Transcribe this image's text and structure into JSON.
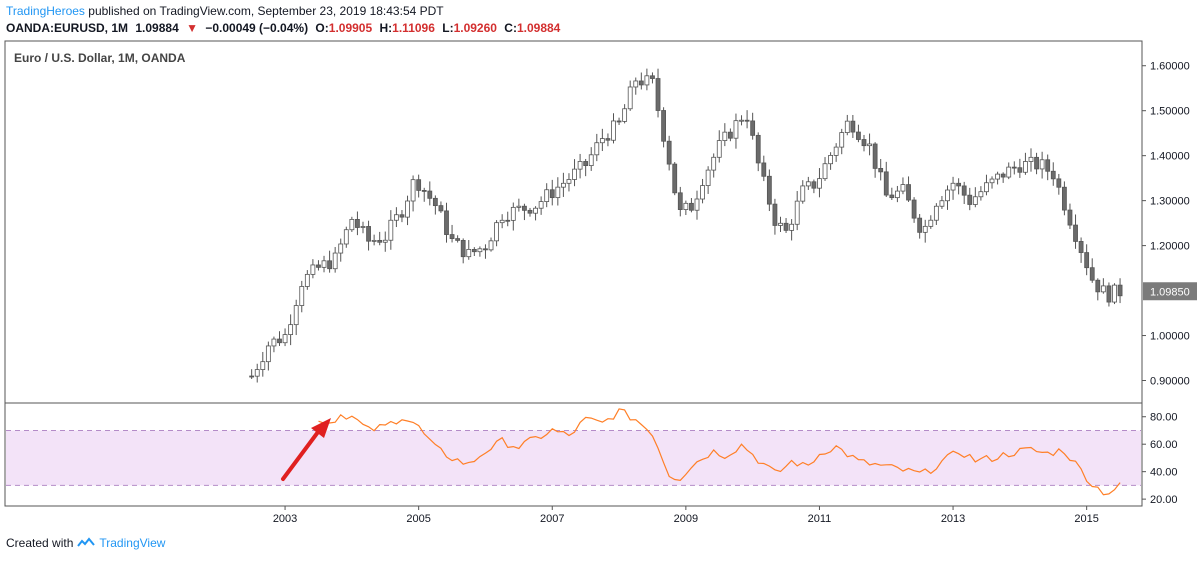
{
  "header": {
    "publisher": "TradingHeroes",
    "published_text": "published on TradingView.com, September 23, 2019 18:43:54 PDT"
  },
  "ticker": {
    "symbol": "OANDA:EURUSD, 1M",
    "last": "1.09884",
    "change": "−0.00049 (−0.04%)",
    "open_label": "O:",
    "open": "1.09905",
    "high_label": "H:",
    "high": "1.11096",
    "low_label": "L:",
    "low": "1.09260",
    "close_label": "C:",
    "close": "1.09884"
  },
  "colors": {
    "bull_fill": "#ffffff",
    "bear_fill": "#6b6b6b",
    "candle_border": "#555555",
    "rsi_line": "#ff7f27",
    "rsi_band": "#f3e3f8",
    "rsi_band_line": "#b48cc8",
    "arrow": "#e02020",
    "price_tag": "#7b7b7b"
  },
  "footer": {
    "created_with": "Created with",
    "brand": "TradingView"
  },
  "chart_data": [
    {
      "type": "candlestick",
      "title": "Euro / U.S. Dollar, 1M, OANDA",
      "ylim": [
        0.85,
        1.655
      ],
      "y_ticks": [
        "1.60000",
        "1.50000",
        "1.40000",
        "1.30000",
        "1.20000",
        "1.00000",
        "0.90000"
      ],
      "y_tick_values": [
        1.6,
        1.5,
        1.4,
        1.3,
        1.2,
        1.0,
        0.9
      ],
      "last_price_label": "1.09850",
      "last_price": 1.0985,
      "x_ticks": [
        "2003",
        "2005",
        "2007",
        "2009",
        "2011",
        "2013",
        "2015"
      ],
      "x_range": [
        2002.0,
        2015.55
      ],
      "close_series": {
        "x": [
          2002.5,
          2002.75,
          2003.0,
          2003.25,
          2003.5,
          2003.75,
          2004.0,
          2004.25,
          2004.5,
          2004.75,
          2004.95,
          2005.25,
          2005.5,
          2005.75,
          2006.0,
          2006.25,
          2006.5,
          2006.75,
          2007.0,
          2007.25,
          2007.5,
          2007.75,
          2008.0,
          2008.25,
          2008.5,
          2008.75,
          2008.9,
          2009.1,
          2009.25,
          2009.5,
          2009.75,
          2009.9,
          2010.1,
          2010.35,
          2010.5,
          2010.75,
          2010.95,
          2011.3,
          2011.45,
          2011.75,
          2012.0,
          2012.25,
          2012.55,
          2012.75,
          2013.0,
          2013.25,
          2013.5,
          2013.75,
          2014.0,
          2014.3,
          2014.5,
          2014.75,
          2015.0,
          2015.1,
          2015.3,
          2015.55
        ],
        "y": [
          0.91,
          0.98,
          1.0,
          1.12,
          1.15,
          1.17,
          1.26,
          1.21,
          1.22,
          1.28,
          1.35,
          1.29,
          1.21,
          1.18,
          1.2,
          1.27,
          1.28,
          1.29,
          1.32,
          1.35,
          1.38,
          1.44,
          1.47,
          1.57,
          1.56,
          1.39,
          1.27,
          1.29,
          1.35,
          1.42,
          1.47,
          1.5,
          1.37,
          1.25,
          1.23,
          1.32,
          1.34,
          1.44,
          1.48,
          1.42,
          1.31,
          1.32,
          1.23,
          1.3,
          1.34,
          1.3,
          1.33,
          1.36,
          1.38,
          1.38,
          1.36,
          1.26,
          1.16,
          1.12,
          1.09,
          1.1
        ]
      }
    },
    {
      "type": "line",
      "series_kind": "RSI",
      "ylim": [
        15,
        90
      ],
      "y_ticks": [
        "80.00",
        "60.00",
        "40.00",
        "20.00"
      ],
      "y_tick_values": [
        80,
        60,
        40,
        20
      ],
      "band": [
        30,
        70
      ],
      "x": [
        2003.5,
        2003.65,
        2003.85,
        2004.0,
        2004.25,
        2004.5,
        2004.75,
        2004.95,
        2005.25,
        2005.5,
        2005.75,
        2006.0,
        2006.25,
        2006.5,
        2006.75,
        2007.0,
        2007.25,
        2007.5,
        2007.75,
        2008.0,
        2008.25,
        2008.5,
        2008.75,
        2008.9,
        2009.1,
        2009.4,
        2009.6,
        2009.85,
        2010.05,
        2010.35,
        2010.6,
        2010.8,
        2011.05,
        2011.25,
        2011.6,
        2011.95,
        2012.25,
        2012.55,
        2012.8,
        2013.1,
        2013.35,
        2013.6,
        2013.9,
        2014.15,
        2014.4,
        2014.65,
        2014.9,
        2015.1,
        2015.3,
        2015.55
      ],
      "y": [
        79,
        75,
        82,
        80,
        70,
        73,
        80,
        75,
        57,
        50,
        45,
        55,
        62,
        58,
        64,
        70,
        66,
        78,
        75,
        84,
        78,
        68,
        38,
        35,
        45,
        55,
        52,
        60,
        50,
        38,
        48,
        43,
        55,
        58,
        47,
        44,
        41,
        38,
        46,
        55,
        48,
        50,
        54,
        56,
        53,
        56,
        42,
        30,
        24,
        31
      ]
    }
  ]
}
